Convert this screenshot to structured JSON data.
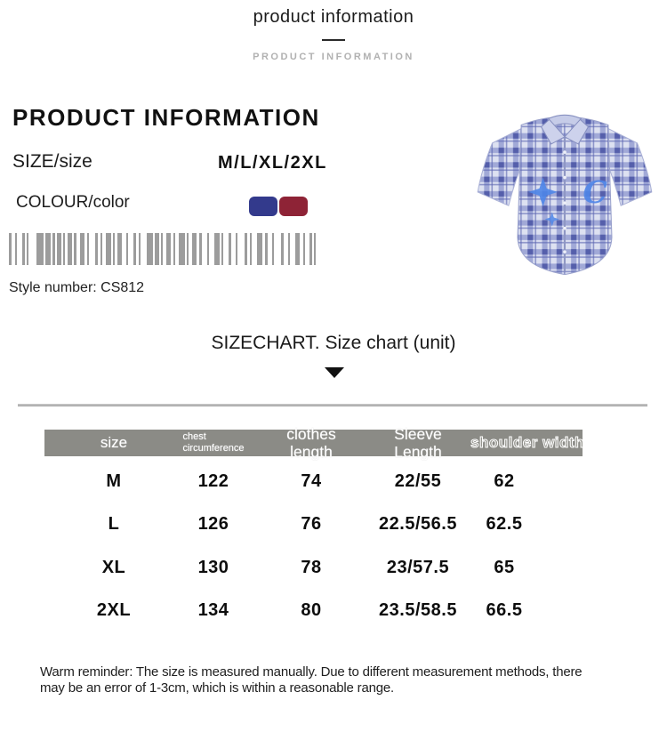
{
  "banner": {
    "title": "product information",
    "subtitle": "PRODUCT INFORMATION"
  },
  "product": {
    "heading": "PRODUCT INFORMATION",
    "size_label": "SIZE/size",
    "size_value": "M/L/XL/2XL",
    "colour_label": "COLOUR/color",
    "colors": [
      {
        "name": "navy-blue",
        "hex": "#333a8c"
      },
      {
        "name": "dark-red",
        "hex": "#8e2336"
      }
    ],
    "barcode_icon": "barcode-icon",
    "style_number": "Style number: CS812",
    "photo": "blue-plaid-short-sleeve-shirt"
  },
  "sizechart": {
    "title": "SIZECHART. Size chart (unit)",
    "arrow_icon": "triangle-down-icon",
    "table": {
      "header_bg": "#8b8b86",
      "headers": [
        "size",
        "chest circumference",
        "clothes length",
        "Sleeve Length",
        "shoulder width"
      ],
      "rows": [
        [
          "M",
          "122",
          "74",
          "22/55",
          "62"
        ],
        [
          "L",
          "126",
          "76",
          "22.5/56.5",
          "62.5"
        ],
        [
          "XL",
          "130",
          "78",
          "23/57.5",
          "65"
        ],
        [
          "2XL",
          "134",
          "80",
          "23.5/58.5",
          "66.5"
        ]
      ]
    },
    "reminder_line1": "Warm reminder: The size is measured manually. Due to different measurement methods, there",
    "reminder_line2": "may be an error of 1-3cm, which is within a reasonable range."
  }
}
